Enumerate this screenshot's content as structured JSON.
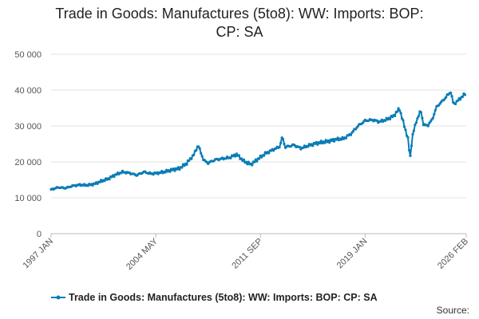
{
  "title_lines": [
    "Trade in Goods: Manufactures (5to8): WW: Imports: BOP:",
    "CP: SA"
  ],
  "source_label": "Source:",
  "legend": {
    "label": "Trade in Goods: Manufactures (5to8): WW: Imports: BOP: CP: SA",
    "color": "#0a7cb5"
  },
  "chart_data": {
    "type": "line",
    "title": "Trade in Goods: Manufactures (5to8): WW: Imports: BOP: CP: SA",
    "xlabel": "",
    "ylabel": "",
    "x_range": [
      1997.0,
      2026.083
    ],
    "ylim": [
      0,
      50000
    ],
    "y_ticks": [
      0,
      10000,
      20000,
      30000,
      40000,
      50000
    ],
    "y_tick_labels": [
      "0",
      "10 000",
      "20 000",
      "30 000",
      "40 000",
      "50 000"
    ],
    "x_ticks": [
      {
        "x": 1997.0,
        "label": "1997 JAN"
      },
      {
        "x": 2004.333,
        "label": "2004 MAY"
      },
      {
        "x": 2011.667,
        "label": "2011 SEP"
      },
      {
        "x": 2019.0,
        "label": "2019 JAN"
      },
      {
        "x": 2026.083,
        "label": "2026 FEB"
      }
    ],
    "grid": true,
    "series": [
      {
        "name": "Trade in Goods: Manufactures (5to8): WW: Imports: BOP: CP: SA",
        "color": "#0a7cb5",
        "points": [
          [
            1997.0,
            12300
          ],
          [
            1997.5,
            12900
          ],
          [
            1998.0,
            12700
          ],
          [
            1998.5,
            13300
          ],
          [
            1999.0,
            13600
          ],
          [
            1999.5,
            13500
          ],
          [
            2000.0,
            13800
          ],
          [
            2000.5,
            14600
          ],
          [
            2001.0,
            15300
          ],
          [
            2001.5,
            16400
          ],
          [
            2002.0,
            17200
          ],
          [
            2002.5,
            16900
          ],
          [
            2003.0,
            16300
          ],
          [
            2003.5,
            17200
          ],
          [
            2004.0,
            16700
          ],
          [
            2004.5,
            16900
          ],
          [
            2005.0,
            17300
          ],
          [
            2005.5,
            17800
          ],
          [
            2006.0,
            18200
          ],
          [
            2006.5,
            19600
          ],
          [
            2007.0,
            22000
          ],
          [
            2007.3,
            24700
          ],
          [
            2007.5,
            22500
          ],
          [
            2007.7,
            20400
          ],
          [
            2008.0,
            19700
          ],
          [
            2008.5,
            20600
          ],
          [
            2009.0,
            20900
          ],
          [
            2009.5,
            21200
          ],
          [
            2010.0,
            22100
          ],
          [
            2010.5,
            20200
          ],
          [
            2011.0,
            19300
          ],
          [
            2011.5,
            20800
          ],
          [
            2012.0,
            22300
          ],
          [
            2012.5,
            23300
          ],
          [
            2013.0,
            24200
          ],
          [
            2013.2,
            27000
          ],
          [
            2013.4,
            24100
          ],
          [
            2014.0,
            24700
          ],
          [
            2014.5,
            23800
          ],
          [
            2015.0,
            24500
          ],
          [
            2015.5,
            25100
          ],
          [
            2016.0,
            25500
          ],
          [
            2016.5,
            25800
          ],
          [
            2017.0,
            26300
          ],
          [
            2017.5,
            26500
          ],
          [
            2018.0,
            27800
          ],
          [
            2018.5,
            30000
          ],
          [
            2019.0,
            31500
          ],
          [
            2019.5,
            31700
          ],
          [
            2020.0,
            31200
          ],
          [
            2020.5,
            31800
          ],
          [
            2021.0,
            32800
          ],
          [
            2021.4,
            34900
          ],
          [
            2021.7,
            30700
          ],
          [
            2022.0,
            26500
          ],
          [
            2022.15,
            20800
          ],
          [
            2022.3,
            27000
          ],
          [
            2022.6,
            31500
          ],
          [
            2022.9,
            34300
          ],
          [
            2023.1,
            30200
          ],
          [
            2023.4,
            30200
          ],
          [
            2023.7,
            31800
          ],
          [
            2024.0,
            35300
          ],
          [
            2024.5,
            37300
          ],
          [
            2024.8,
            38700
          ],
          [
            2025.0,
            39500
          ],
          [
            2025.2,
            36000
          ],
          [
            2025.5,
            37100
          ],
          [
            2025.8,
            38200
          ],
          [
            2026.083,
            39200
          ]
        ]
      }
    ]
  }
}
